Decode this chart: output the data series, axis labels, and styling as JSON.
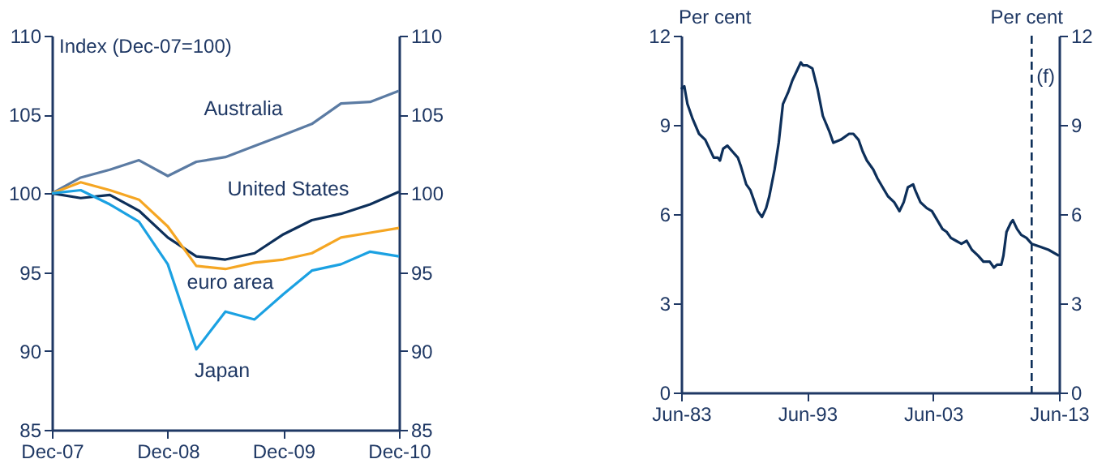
{
  "chart_data": [
    {
      "type": "line",
      "ylabel": "Index (Dec-07=100)",
      "x": [
        "2007-12",
        "2008-03",
        "2008-06",
        "2008-09",
        "2008-12",
        "2009-03",
        "2009-06",
        "2009-09",
        "2009-12",
        "2010-03",
        "2010-06",
        "2010-09",
        "2010-12"
      ],
      "xlim": [
        "2007-12",
        "2010-12"
      ],
      "xticks": [
        {
          "value": "2007-12",
          "label": "Dec-07"
        },
        {
          "value": "2008-12",
          "label": "Dec-08"
        },
        {
          "value": "2009-12",
          "label": "Dec-09"
        },
        {
          "value": "2010-12",
          "label": "Dec-10"
        }
      ],
      "ylim": [
        85,
        110
      ],
      "yticks": [
        85,
        90,
        95,
        100,
        105,
        110
      ],
      "y2lim": [
        85,
        110
      ],
      "y2ticks": [
        85,
        90,
        95,
        100,
        105,
        110
      ],
      "series": [
        {
          "name": "Australia",
          "color": "#5b7ba3",
          "values": [
            100,
            101.0,
            101.5,
            102.1,
            101.1,
            102.0,
            102.3,
            103.0,
            103.7,
            104.4,
            105.7,
            105.8,
            106.5
          ]
        },
        {
          "name": "United States",
          "color": "#0d2f5a",
          "values": [
            100,
            99.7,
            99.9,
            98.9,
            97.2,
            96.0,
            95.8,
            96.2,
            97.4,
            98.3,
            98.7,
            99.3,
            100.1
          ]
        },
        {
          "name": "euro area",
          "color": "#f5a623",
          "values": [
            100,
            100.7,
            100.2,
            99.6,
            97.9,
            95.4,
            95.2,
            95.6,
            95.8,
            96.2,
            97.2,
            97.5,
            97.8
          ]
        },
        {
          "name": "Japan",
          "color": "#1ba1e2",
          "values": [
            100,
            100.2,
            99.3,
            98.2,
            95.5,
            90.1,
            92.5,
            92.0,
            93.6,
            95.1,
            95.5,
            96.3,
            96.0
          ]
        }
      ],
      "grid": false
    },
    {
      "type": "line",
      "ylabel": "Per cent",
      "y2label": "Per cent",
      "x": [
        "1983-06",
        "1983-09",
        "1983-12",
        "1984-05",
        "1984-11",
        "1985-05",
        "1985-09",
        "1986-01",
        "1986-05",
        "1986-07",
        "1986-10",
        "1987-02",
        "1987-07",
        "1987-12",
        "1988-03",
        "1988-08",
        "1988-12",
        "1989-04",
        "1989-07",
        "1989-11",
        "1990-03",
        "1990-06",
        "1990-11",
        "1991-03",
        "1991-07",
        "1991-12",
        "1992-04",
        "1992-08",
        "1992-12",
        "1993-02",
        "1993-06",
        "1993-11",
        "1994-04",
        "1994-09",
        "1995-03",
        "1995-07",
        "1996-02",
        "1996-10",
        "1997-02",
        "1997-07",
        "1997-11",
        "1998-03",
        "1998-09",
        "1999-01",
        "1999-06",
        "1999-11",
        "2000-05",
        "2000-10",
        "2001-02",
        "2001-06",
        "2001-11",
        "2002-01",
        "2002-06",
        "2002-12",
        "2003-05",
        "2003-10",
        "2004-03",
        "2004-07",
        "2004-11",
        "2005-04",
        "2005-09",
        "2006-02",
        "2006-07",
        "2007-01",
        "2007-06",
        "2007-09",
        "2007-12",
        "2008-04",
        "2008-07",
        "2008-11",
        "2009-01",
        "2009-04",
        "2009-08",
        "2009-10",
        "2010-02",
        "2010-06",
        "2010-11",
        "2011-04",
        "2011-12",
        "2012-08",
        "2013-06"
      ],
      "xlim": [
        "1983-06",
        "2013-06"
      ],
      "xticks": [
        {
          "value": "1983-06",
          "label": "Jun-83"
        },
        {
          "value": "1993-06",
          "label": "Jun-93"
        },
        {
          "value": "2003-06",
          "label": "Jun-03"
        },
        {
          "value": "2013-06",
          "label": "Jun-13"
        }
      ],
      "ylim": [
        0,
        12
      ],
      "yticks": [
        0,
        3,
        6,
        9,
        12
      ],
      "y2lim": [
        0,
        12
      ],
      "y2ticks": [
        0,
        3,
        6,
        9,
        12
      ],
      "series": [
        {
          "color": "#0d2f5a",
          "values": [
            10.2,
            10.3,
            9.7,
            9.2,
            8.7,
            8.5,
            8.2,
            7.9,
            7.9,
            7.8,
            8.2,
            8.3,
            8.1,
            7.9,
            7.6,
            7.0,
            6.8,
            6.4,
            6.1,
            5.9,
            6.2,
            6.6,
            7.5,
            8.4,
            9.7,
            10.1,
            10.5,
            10.8,
            11.1,
            11.0,
            11.0,
            10.9,
            10.2,
            9.3,
            8.8,
            8.4,
            8.5,
            8.7,
            8.7,
            8.5,
            8.1,
            7.8,
            7.5,
            7.2,
            6.9,
            6.6,
            6.4,
            6.1,
            6.4,
            6.9,
            7.0,
            6.8,
            6.4,
            6.2,
            6.1,
            5.8,
            5.5,
            5.4,
            5.2,
            5.1,
            5.0,
            5.1,
            4.8,
            4.6,
            4.4,
            4.4,
            4.4,
            4.2,
            4.3,
            4.3,
            4.6,
            5.4,
            5.7,
            5.8,
            5.5,
            5.3,
            5.2,
            5.0,
            4.9,
            4.8,
            4.6
          ]
        }
      ],
      "ref_lines": [
        {
          "axis": "x",
          "value": "2011-04",
          "label": "(f)",
          "color": "#0d2f5a",
          "line_style": "dashed"
        }
      ],
      "grid": false
    }
  ]
}
